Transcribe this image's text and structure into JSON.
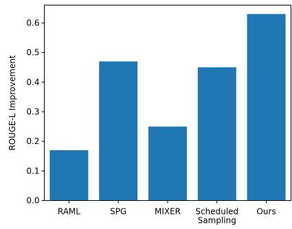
{
  "chart_data": {
    "type": "bar",
    "categories": [
      "RAML",
      "SPG",
      "MIXER",
      "Scheduled\nSampling",
      "Ours"
    ],
    "values": [
      0.17,
      0.47,
      0.25,
      0.45,
      0.63
    ],
    "ylabel": "ROUGE-L Improvement",
    "xlabel": "",
    "title": "",
    "ylim": [
      0.0,
      0.66
    ],
    "yticks": [
      0.0,
      0.1,
      0.2,
      0.3,
      0.4,
      0.5,
      0.6
    ],
    "ytick_labels": [
      "0.0",
      "0.1",
      "0.2",
      "0.3",
      "0.4",
      "0.5",
      "0.6"
    ],
    "bar_color": "#1f77b4",
    "grid": false,
    "legend": "none"
  }
}
